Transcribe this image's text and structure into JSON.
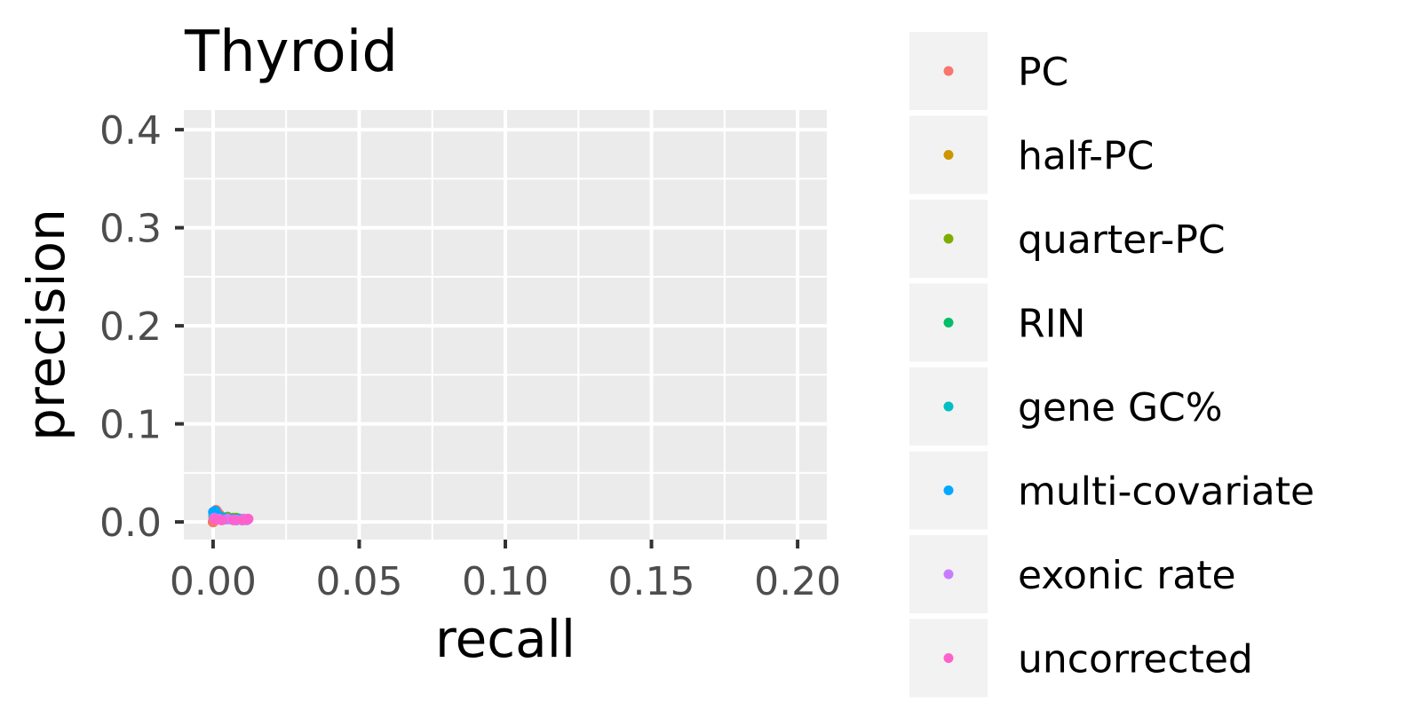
{
  "chart_data": {
    "type": "scatter",
    "title": "Thyroid",
    "xlabel": "recall",
    "ylabel": "precision",
    "xlim": [
      -0.01,
      0.21
    ],
    "ylim": [
      -0.018,
      0.42
    ],
    "x_ticks": [
      0.0,
      0.05,
      0.1,
      0.15,
      0.2
    ],
    "x_tick_labels": [
      "0.00",
      "0.05",
      "0.10",
      "0.15",
      "0.20"
    ],
    "y_ticks": [
      0.0,
      0.1,
      0.2,
      0.3,
      0.4
    ],
    "y_tick_labels": [
      "0.0",
      "0.1",
      "0.2",
      "0.3",
      "0.4"
    ],
    "grid": true,
    "legend_position": "right",
    "series": [
      {
        "name": "PC",
        "color": "#F8766D",
        "points": [
          [
            0.0,
            0.0
          ],
          [
            0.0002,
            0.004
          ],
          [
            0.0005,
            0.008
          ],
          [
            0.001,
            0.012
          ],
          [
            0.0015,
            0.01
          ],
          [
            0.002,
            0.008
          ],
          [
            0.0025,
            0.006
          ],
          [
            0.003,
            0.005
          ],
          [
            0.0008,
            0.002
          ],
          [
            0.0012,
            0.006
          ]
        ]
      },
      {
        "name": "half-PC",
        "color": "#CD9600",
        "points": [
          [
            0.0003,
            0.003
          ],
          [
            0.001,
            0.007
          ],
          [
            0.002,
            0.006
          ],
          [
            0.003,
            0.005
          ],
          [
            0.004,
            0.004
          ],
          [
            0.005,
            0.004
          ]
        ]
      },
      {
        "name": "quarter-PC",
        "color": "#7CAE00",
        "points": [
          [
            0.0005,
            0.004
          ],
          [
            0.0015,
            0.006
          ],
          [
            0.003,
            0.005
          ],
          [
            0.005,
            0.005
          ],
          [
            0.007,
            0.004
          ],
          [
            0.008,
            0.004
          ],
          [
            0.009,
            0.003
          ]
        ]
      },
      {
        "name": "RIN",
        "color": "#00BE67",
        "points": [
          [
            0.0004,
            0.005
          ],
          [
            0.002,
            0.004
          ],
          [
            0.004,
            0.003
          ],
          [
            0.006,
            0.003
          ],
          [
            0.008,
            0.003
          ]
        ]
      },
      {
        "name": "gene GC%",
        "color": "#00BFC4",
        "points": [
          [
            0.0002,
            0.006
          ],
          [
            0.0015,
            0.005
          ],
          [
            0.003,
            0.004
          ],
          [
            0.005,
            0.003
          ],
          [
            0.007,
            0.003
          ],
          [
            0.009,
            0.003
          ]
        ]
      },
      {
        "name": "multi-covariate",
        "color": "#00A9FF",
        "points": [
          [
            0.0001,
            0.01
          ],
          [
            0.0008,
            0.011
          ],
          [
            0.002,
            0.006
          ],
          [
            0.004,
            0.004
          ],
          [
            0.006,
            0.003
          ],
          [
            0.008,
            0.002
          ],
          [
            0.01,
            0.002
          ]
        ]
      },
      {
        "name": "exonic rate",
        "color": "#C77CFF",
        "points": [
          [
            0.0004,
            0.004
          ],
          [
            0.002,
            0.003
          ],
          [
            0.005,
            0.003
          ],
          [
            0.008,
            0.002
          ],
          [
            0.0105,
            0.003
          ],
          [
            0.0115,
            0.002
          ]
        ]
      },
      {
        "name": "uncorrected",
        "color": "#FF61CC",
        "points": [
          [
            0.0005,
            0.003
          ],
          [
            0.003,
            0.002
          ],
          [
            0.007,
            0.002
          ],
          [
            0.01,
            0.002
          ],
          [
            0.012,
            0.003
          ]
        ]
      }
    ]
  }
}
